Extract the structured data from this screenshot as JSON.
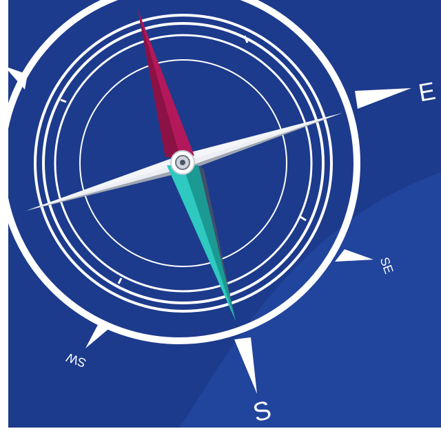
{
  "labels": {
    "east": "E",
    "southeast": "SE",
    "south": "S",
    "southwest": "SW"
  },
  "colors": {
    "background_dark": "#1e3a8a",
    "background_light": "#22439a",
    "ring": "#ffffff",
    "needle_north_light": "#b3185a",
    "needle_north_dark": "#8a1043",
    "needle_south_light": "#2ec9c0",
    "needle_south_dark": "#1a9a93",
    "needle_east_west_light": "#eef0f6",
    "needle_east_west_dark": "#c9cdd8"
  },
  "icons": {
    "compass": "compass-rose-icon"
  }
}
